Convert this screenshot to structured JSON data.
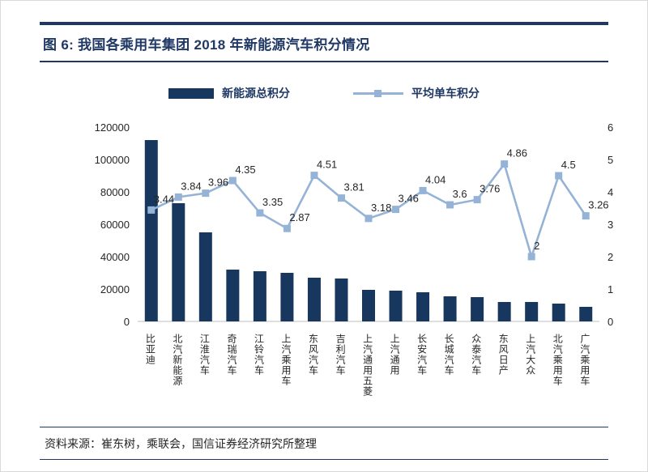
{
  "header": {
    "title": "图 6: 我国各乘用车集团 2018 年新能源汽车积分情况"
  },
  "footer": {
    "source": "资料来源：崔东树，乘联会，国信证券经济研究所整理"
  },
  "colors": {
    "accent_navy": "#1F3864",
    "bar": "#17375E",
    "line": "#95B3D7",
    "axis_text": "#262626"
  },
  "chart_data": {
    "type": "bar",
    "subtype": "combo bar + line, dual axis",
    "title": "图 6: 我国各乘用车集团 2018 年新能源汽车积分情况",
    "xlabel": "",
    "ylabel_left": "",
    "ylabel_right": "",
    "grid": false,
    "legend_position": "top",
    "categories": [
      "比亚迪",
      "北汽新能源",
      "江淮汽车",
      "奇瑞汽车",
      "江铃汽车",
      "上汽乘用车",
      "东风汽车",
      "吉利汽车",
      "上汽通用五菱",
      "上汽通用",
      "长安汽车",
      "长城汽车",
      "众泰汽车",
      "东风日产",
      "上汽大众",
      "北汽乘用车",
      "广汽乘用车"
    ],
    "series": [
      {
        "name": "新能源总积分",
        "type": "bar",
        "axis": "left",
        "values": [
          112000,
          73000,
          55000,
          32000,
          31000,
          30000,
          27000,
          26500,
          19500,
          19000,
          18000,
          15500,
          15000,
          12000,
          12000,
          11000,
          9000
        ]
      },
      {
        "name": "平均单车积分",
        "type": "line",
        "axis": "right",
        "values": [
          3.44,
          3.84,
          3.96,
          4.35,
          3.35,
          2.87,
          4.51,
          3.81,
          3.18,
          3.46,
          4.04,
          3.6,
          3.76,
          4.86,
          2,
          4.5,
          3.26
        ]
      }
    ],
    "left_axis": {
      "min": 0,
      "max": 120000,
      "ticks": [
        0,
        20000,
        40000,
        60000,
        80000,
        100000,
        120000
      ]
    },
    "right_axis": {
      "min": 0,
      "max": 6,
      "ticks": [
        0,
        1,
        2,
        3,
        4,
        5,
        6
      ]
    }
  }
}
